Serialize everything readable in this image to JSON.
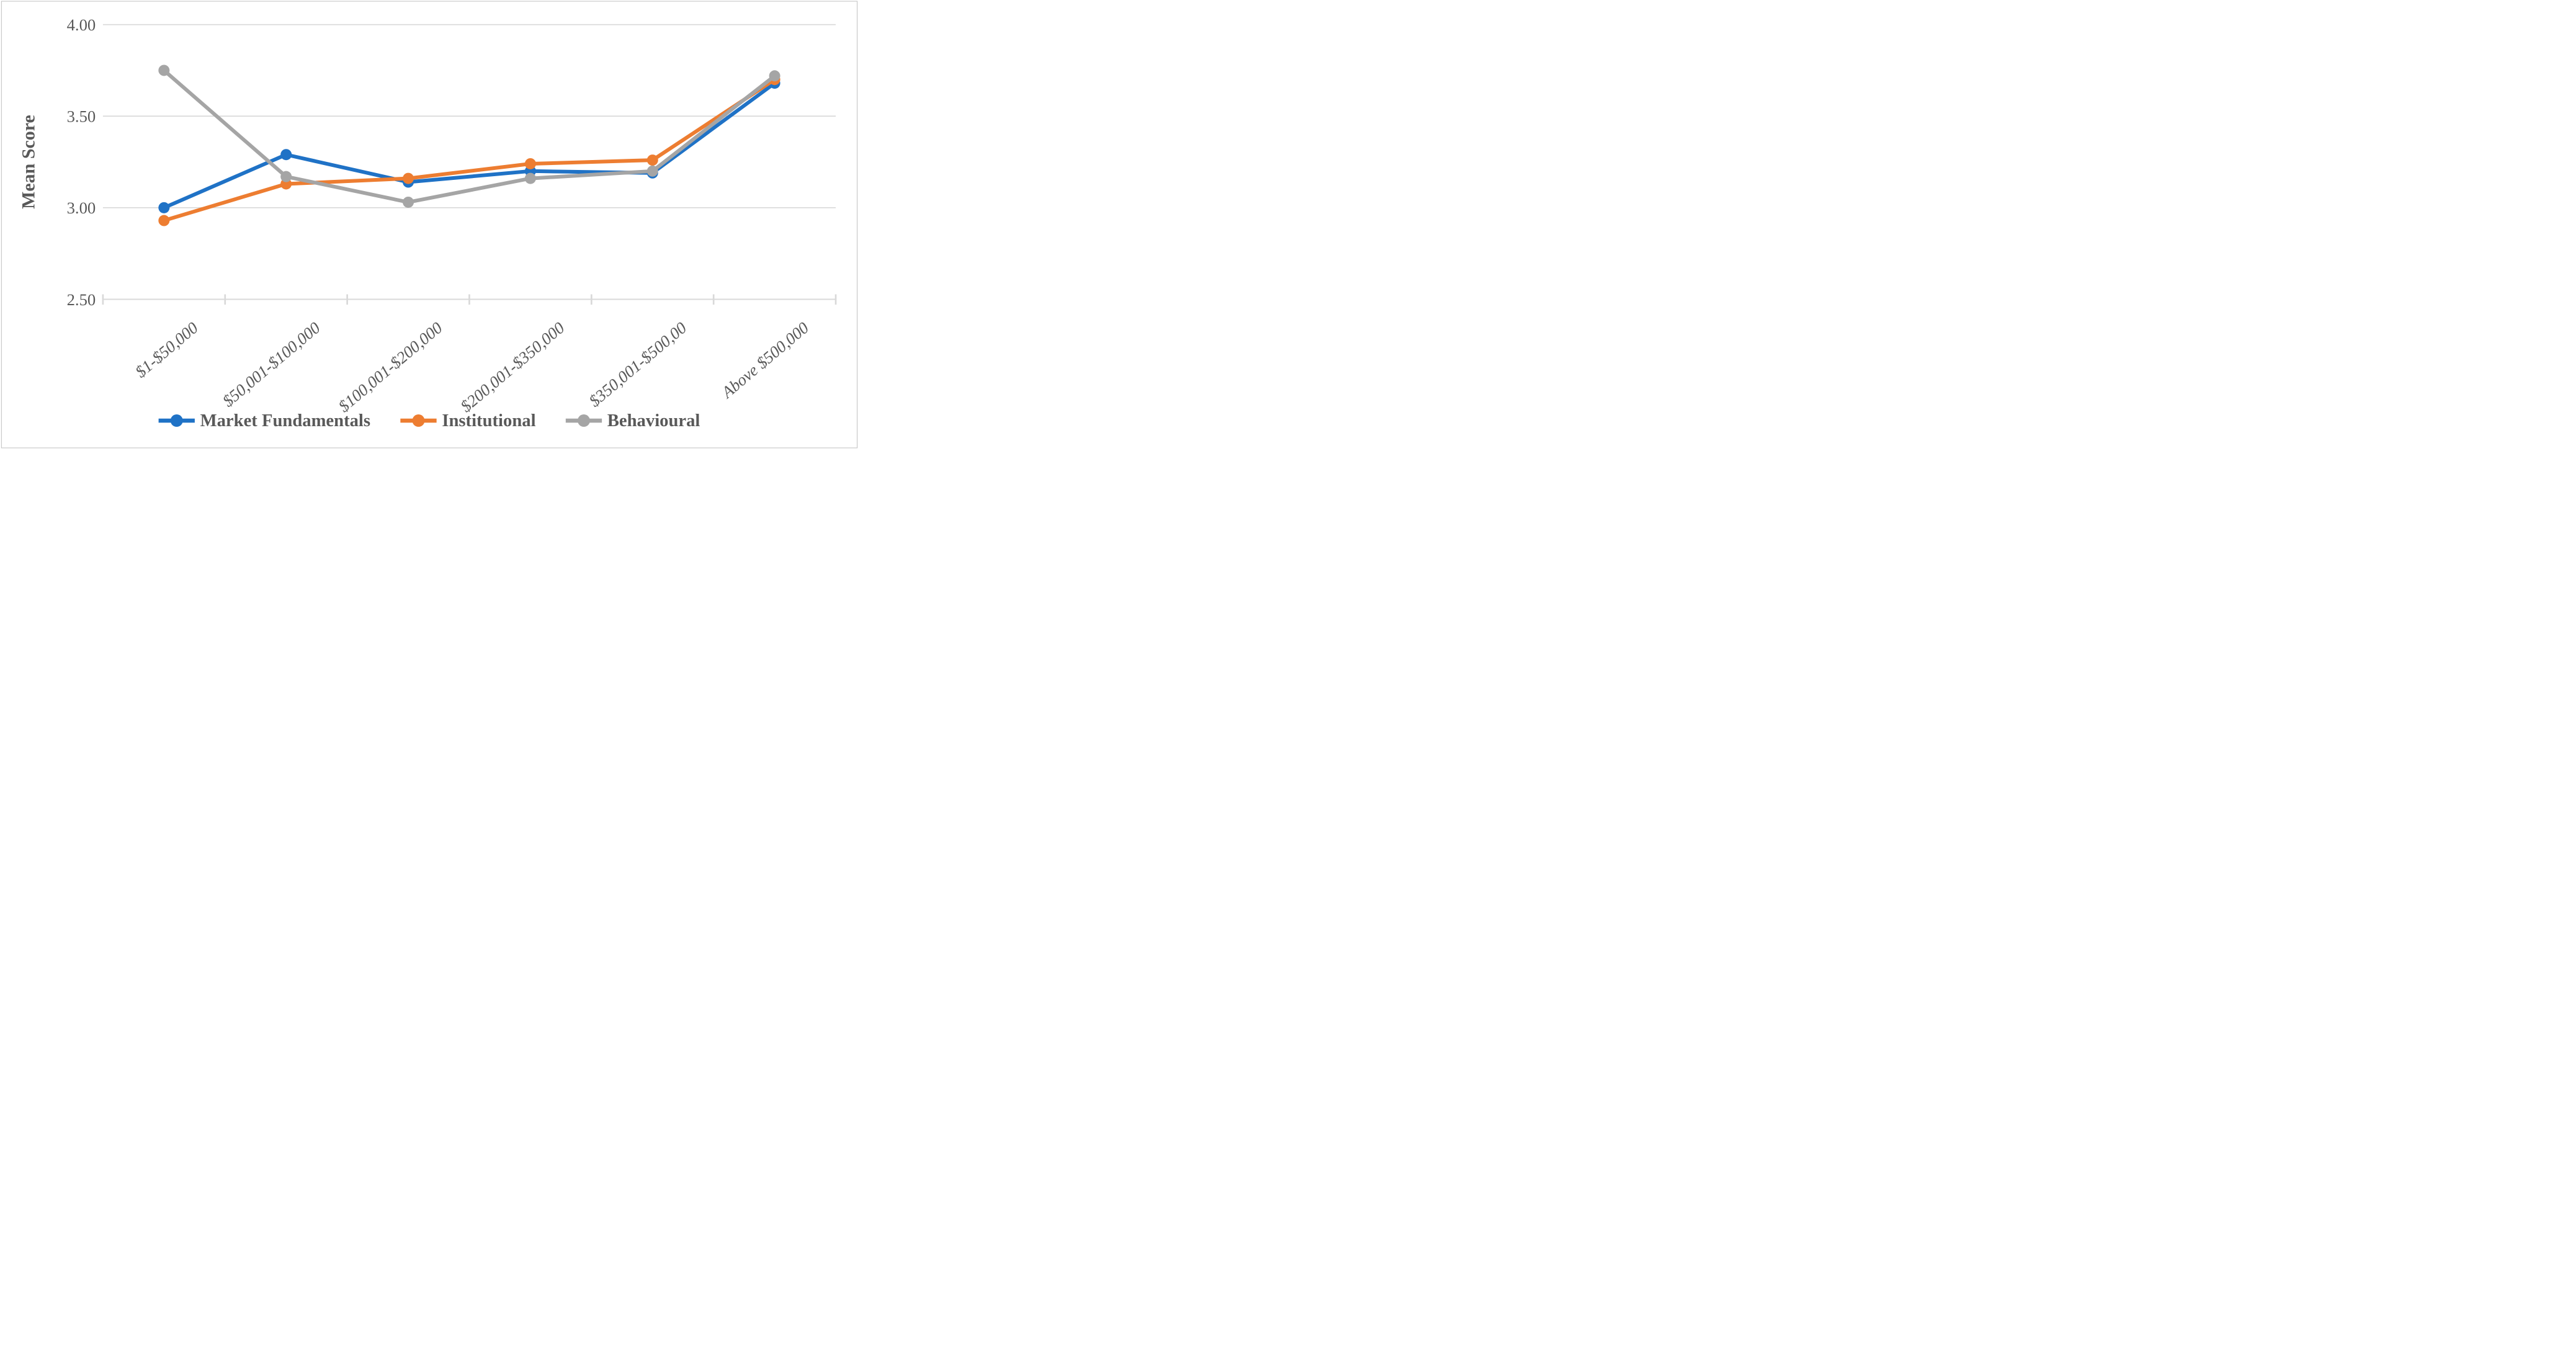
{
  "figure": {
    "background": "#FFFFFF",
    "border_color": "#BFBFBF"
  },
  "chart_data": {
    "type": "line",
    "title": "",
    "xlabel": "",
    "ylabel": "Mean Score",
    "ylim": [
      2.5,
      4.0
    ],
    "yticks": [
      {
        "label": "2.50",
        "value": 2.5
      },
      {
        "label": "3.00",
        "value": 3.0
      },
      {
        "label": "3.50",
        "value": 3.5
      },
      {
        "label": "4.00",
        "value": 4.0
      }
    ],
    "grid": "horizontal",
    "legend_position": "bottom",
    "categories": [
      "$1-$50,000",
      "$50,001-$100,000",
      "$100,001-$200,000",
      "$200,001-$350,000",
      "$350,001-$500,00",
      "Above $500,000"
    ],
    "series": [
      {
        "name": "Market Fundamentals",
        "color": "#1F72C6",
        "values": [
          3.0,
          3.29,
          3.14,
          3.2,
          3.19,
          3.68
        ]
      },
      {
        "name": "Institutional",
        "color": "#ED7D31",
        "values": [
          2.93,
          3.13,
          3.16,
          3.24,
          3.26,
          3.7
        ]
      },
      {
        "name": "Behavioural",
        "color": "#A5A5A5",
        "values": [
          3.75,
          3.17,
          3.03,
          3.16,
          3.2,
          3.72
        ]
      }
    ],
    "styles": {
      "grid_color": "#D9D9D9",
      "axis_color": "#D9D9D9",
      "tick_color": "#D9D9D9",
      "label_color": "#595959"
    }
  }
}
